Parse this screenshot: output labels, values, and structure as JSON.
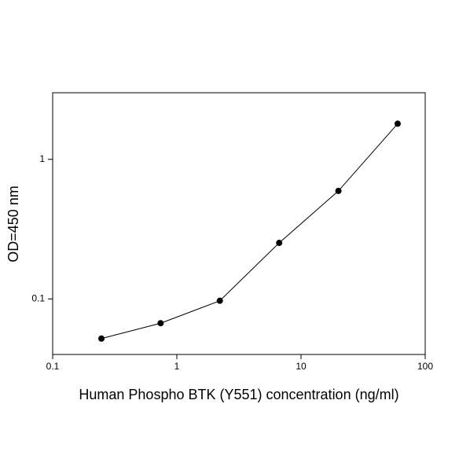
{
  "chart_data": {
    "type": "line",
    "x_label": "Human Phospho BTK (Y551) concentration (ng/ml)",
    "y_label": "OD=450 nm",
    "x": [
      0.247,
      0.74,
      2.22,
      6.67,
      20,
      60
    ],
    "series": [
      {
        "color": "#000000",
        "values": [
          0.052,
          0.067,
          0.097,
          0.252,
          0.594,
          1.8
        ]
      }
    ],
    "xlim": [
      0.1,
      100
    ],
    "ylim": [
      0.04,
      3
    ],
    "xticks": [
      0.1,
      1,
      10,
      100
    ],
    "yticks": [
      0.1,
      1
    ],
    "log_x": true,
    "log_y": true,
    "grid": false
  }
}
